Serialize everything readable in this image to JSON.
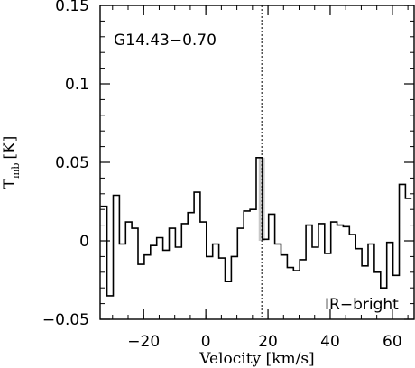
{
  "chart_data": {
    "type": "line",
    "step": true,
    "source_label": "G14.43−0.70",
    "corner_label": "IR−bright",
    "xlabel": "Velocity [km/s]",
    "ylabel_main": "T",
    "ylabel_sub": "mb",
    "ylabel_unit": "[K]",
    "xlim": [
      -34,
      67
    ],
    "ylim": [
      -0.05,
      0.15
    ],
    "x_ticks": [
      -20,
      0,
      20,
      40,
      60
    ],
    "x_tick_labels": [
      "−20",
      "0",
      "20",
      "40",
      "60"
    ],
    "y_ticks": [
      -0.05,
      0,
      0.05,
      0.1,
      0.15
    ],
    "y_tick_labels": [
      "−0.05",
      "0",
      "0.05",
      "0.1",
      "0.15"
    ],
    "x_minor_step": 5,
    "y_minor_step": 0.01,
    "vline_x": 18,
    "highlight_range": [
      17,
      19
    ],
    "grid": false,
    "series": [
      {
        "x": [
          -32.8,
          -30.8,
          -28.8,
          -26.8,
          -24.8,
          -22.8,
          -20.8,
          -18.8,
          -16.8,
          -14.8,
          -12.8,
          -10.8,
          -8.8,
          -6.8,
          -4.8,
          -2.8,
          -0.8,
          1.2,
          3.2,
          5.2,
          7.2,
          9.2,
          11.2,
          13.2,
          15.2,
          17.2,
          19.2,
          21.2,
          23.2,
          25.2,
          27.2,
          29.2,
          31.2,
          33.2,
          35.2,
          37.2,
          39.2,
          41.2,
          43.2,
          45.2,
          47.2,
          49.2,
          51.2,
          53.2,
          55.2,
          57.2,
          59.2,
          61.2,
          63.2,
          65.2
        ],
        "values": [
          0.022,
          -0.035,
          0.029,
          -0.002,
          0.012,
          0.008,
          -0.015,
          -0.009,
          -0.003,
          0.002,
          -0.006,
          0.008,
          -0.004,
          0.011,
          0.018,
          0.031,
          0.012,
          -0.01,
          -0.002,
          -0.011,
          -0.026,
          -0.01,
          0.008,
          0.019,
          0.02,
          0.053,
          0.001,
          0.017,
          -0.002,
          -0.009,
          -0.017,
          -0.019,
          -0.012,
          0.01,
          -0.004,
          0.011,
          -0.008,
          0.012,
          0.01,
          0.009,
          0.004,
          -0.005,
          -0.016,
          -0.002,
          -0.02,
          -0.03,
          -0.001,
          -0.022,
          0.036,
          0.027
        ]
      }
    ]
  }
}
